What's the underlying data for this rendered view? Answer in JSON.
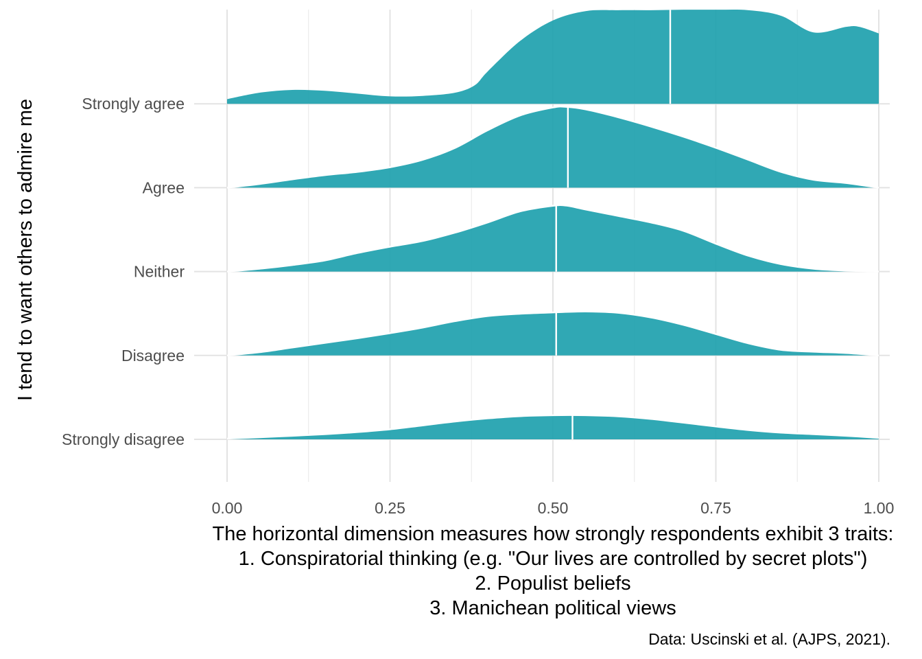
{
  "chart_data": {
    "type": "ridgeline",
    "xlim": [
      0,
      1
    ],
    "x_ticks": [
      "0.00",
      "0.25",
      "0.50",
      "0.75",
      "1.00"
    ],
    "x_tick_values": [
      0,
      0.25,
      0.5,
      0.75,
      1.0
    ],
    "ylabel": "I tend to want others to admire me",
    "xlabel_lines": [
      "The horizontal dimension measures how strongly respondents exhibit 3 traits:",
      "1. Conspiratorial thinking (e.g. \"Our lives are controlled by secret plots\")",
      "2. Populist beliefs",
      "3. Manichean political views"
    ],
    "caption": "Data: Uscinski et al. (AJPS, 2021).",
    "grid": true,
    "fill_color": "#1a9fac",
    "fill_opacity": 0.9,
    "median_line_color": "#ffffff",
    "categories": [
      "Strongly disagree",
      "Disagree",
      "Neither",
      "Agree",
      "Strongly agree"
    ],
    "series": [
      {
        "name": "Strongly disagree",
        "median": 0.53,
        "x": [
          0,
          0.05,
          0.1,
          0.15,
          0.2,
          0.25,
          0.3,
          0.35,
          0.4,
          0.45,
          0.5,
          0.55,
          0.6,
          0.65,
          0.7,
          0.75,
          0.8,
          0.85,
          0.9,
          0.95,
          1.0
        ],
        "density": [
          0.08,
          0.22,
          0.38,
          0.55,
          0.78,
          1.08,
          1.5,
          1.92,
          2.26,
          2.5,
          2.6,
          2.6,
          2.48,
          2.2,
          1.8,
          1.38,
          1.0,
          0.72,
          0.55,
          0.38,
          0.15
        ]
      },
      {
        "name": "Disagree",
        "median": 0.505,
        "x": [
          0,
          0.05,
          0.1,
          0.15,
          0.2,
          0.25,
          0.3,
          0.35,
          0.4,
          0.45,
          0.5,
          0.55,
          0.6,
          0.65,
          0.7,
          0.75,
          0.8,
          0.85,
          0.9,
          0.95,
          1.0
        ],
        "density": [
          0.0,
          0.35,
          0.85,
          1.35,
          1.85,
          2.4,
          3.0,
          3.7,
          4.25,
          4.5,
          4.64,
          4.74,
          4.6,
          4.1,
          3.3,
          2.3,
          1.3,
          0.6,
          0.4,
          0.26,
          0.0
        ]
      },
      {
        "name": "Neither",
        "median": 0.505,
        "x": [
          0,
          0.05,
          0.1,
          0.15,
          0.2,
          0.25,
          0.3,
          0.35,
          0.4,
          0.45,
          0.5,
          0.52,
          0.55,
          0.6,
          0.65,
          0.7,
          0.75,
          0.8,
          0.85,
          0.9,
          0.95,
          1.0
        ],
        "density": [
          0.0,
          0.3,
          0.7,
          1.2,
          2.0,
          2.68,
          3.3,
          4.2,
          5.3,
          6.5,
          7.1,
          7.12,
          6.7,
          6.0,
          5.3,
          4.4,
          3.0,
          1.7,
          0.8,
          0.3,
          0.1,
          0.0
        ]
      },
      {
        "name": "Agree",
        "median": 0.523,
        "x": [
          0,
          0.05,
          0.1,
          0.15,
          0.2,
          0.25,
          0.3,
          0.35,
          0.4,
          0.45,
          0.5,
          0.52,
          0.55,
          0.6,
          0.65,
          0.7,
          0.75,
          0.8,
          0.85,
          0.9,
          0.95,
          1.0
        ],
        "density": [
          0.0,
          0.4,
          0.9,
          1.35,
          1.7,
          2.2,
          3.0,
          4.3,
          6.2,
          7.8,
          8.65,
          8.72,
          8.45,
          7.6,
          6.6,
          5.5,
          4.3,
          3.0,
          1.7,
          0.85,
          0.5,
          0.0
        ]
      },
      {
        "name": "Strongly agree",
        "median": 0.68,
        "x": [
          0,
          0.05,
          0.1,
          0.15,
          0.2,
          0.25,
          0.3,
          0.35,
          0.38,
          0.4,
          0.45,
          0.5,
          0.55,
          0.6,
          0.65,
          0.7,
          0.75,
          0.8,
          0.85,
          0.9,
          0.95,
          0.97,
          1.0
        ],
        "density": [
          0.5,
          1.2,
          1.5,
          1.4,
          1.1,
          0.8,
          0.85,
          1.2,
          2.0,
          3.5,
          6.8,
          9.0,
          10.0,
          10.1,
          10.1,
          10.15,
          10.15,
          10.1,
          9.5,
          7.7,
          8.3,
          8.3,
          7.6
        ]
      }
    ]
  }
}
